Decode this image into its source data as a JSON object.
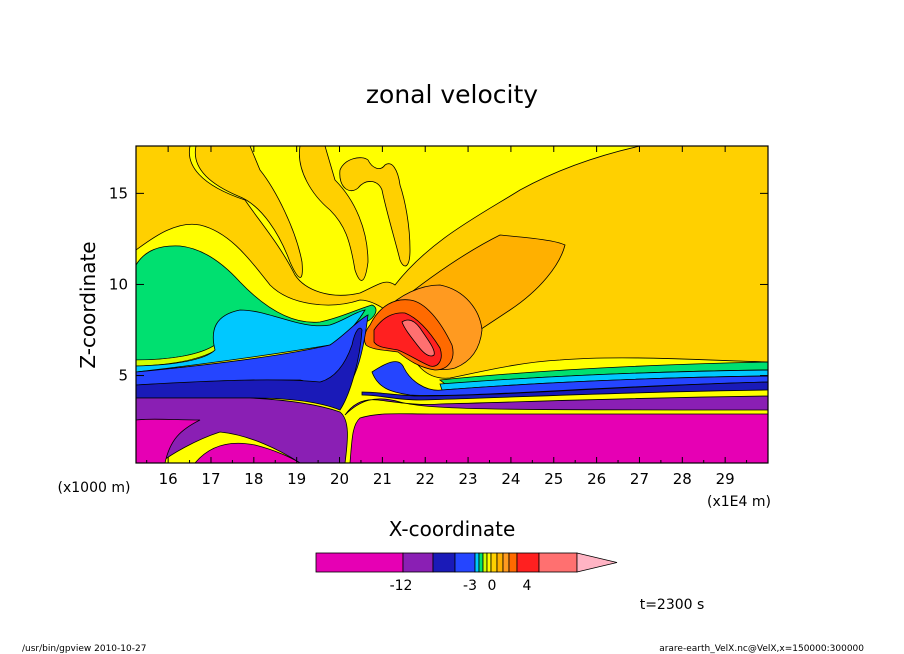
{
  "chart_data": {
    "type": "contour",
    "title": "zonal velocity",
    "xlabel": "X-coordinate",
    "ylabel": "Z-coordinate",
    "x_unit": "(x1E4 m)",
    "y_unit": "(x1000 m)",
    "xlim": [
      15.25,
      30.0
    ],
    "ylim": [
      0.2,
      17.6
    ],
    "x_ticks": [
      "16",
      "17",
      "18",
      "19",
      "20",
      "21",
      "22",
      "23",
      "24",
      "25",
      "26",
      "27",
      "28",
      "29"
    ],
    "y_ticks": [
      "5",
      "10",
      "15"
    ],
    "time_label": "t=2300 s",
    "colorbar": {
      "labels": [
        "-12",
        "-3",
        "0",
        "4"
      ],
      "colors": [
        "#e600b4",
        "#8a1fb4",
        "#1a1ab8",
        "#2545ff",
        "#00c8ff",
        "#00e070",
        "#cfff00",
        "#ffff00",
        "#ffd000",
        "#ffb000",
        "#ff9a20",
        "#ff6a00",
        "#ff2020",
        "#ff7070",
        "#ffb4c4"
      ]
    }
  },
  "footer": {
    "left": "/usr/bin/gpview   2010-10-27",
    "right": "arare-earth_VelX.nc@VelX,x=150000:300000"
  }
}
